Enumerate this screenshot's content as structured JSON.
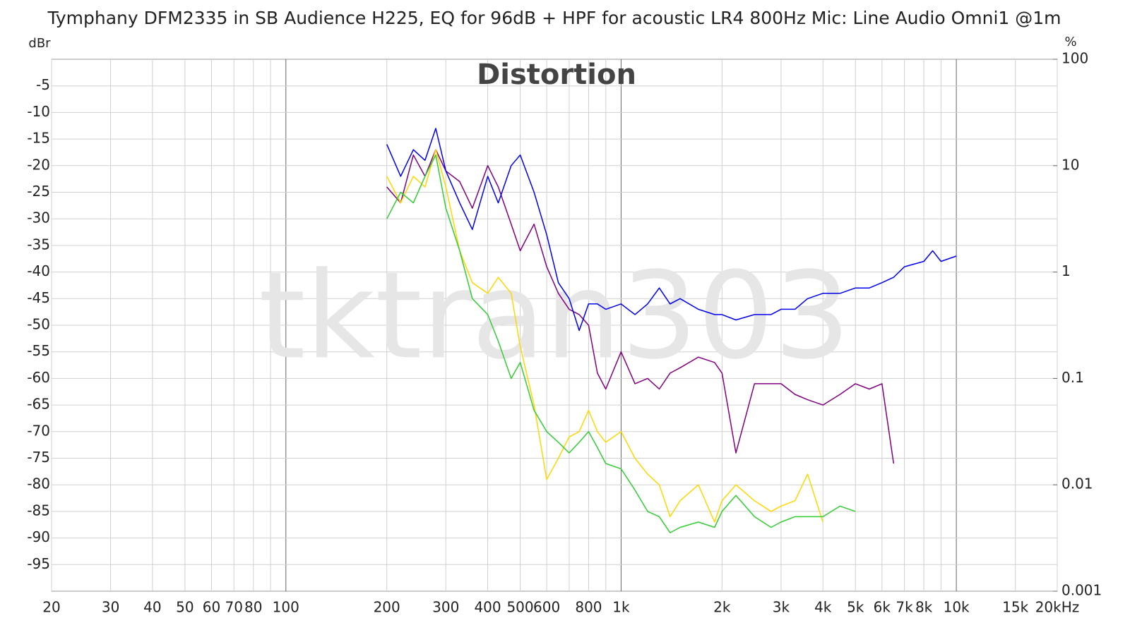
{
  "chart_data": {
    "type": "line",
    "title": "Tymphany DFM2335 in SB Audience H225, EQ for 96dB + HPF for acoustic LR4 800Hz Mic: Line Audio Omni1 @1m",
    "annotation": "Distortion",
    "watermark": "tktran303",
    "ylabel": "dBr",
    "y2label": "%",
    "xscale": "log",
    "y2scale": "log",
    "grid": true,
    "xlim": [
      20,
      20000
    ],
    "xticks": [
      20,
      30,
      40,
      50,
      60,
      70,
      80,
      100,
      200,
      300,
      400,
      500,
      600,
      800,
      {
        "value": 1000,
        "label": "1k"
      },
      {
        "value": 2000,
        "label": "2k"
      },
      {
        "value": 3000,
        "label": "3k"
      },
      {
        "value": 4000,
        "label": "4k"
      },
      {
        "value": 5000,
        "label": "5k"
      },
      {
        "value": 6000,
        "label": "6k"
      },
      {
        "value": 7000,
        "label": "7k"
      },
      {
        "value": 8000,
        "label": "8k"
      },
      {
        "value": 10000,
        "label": "10k"
      },
      {
        "value": 15000,
        "label": "15k"
      },
      {
        "value": 20000,
        "label": "20kHz"
      }
    ],
    "minor_grid": [
      90,
      700,
      900,
      9000
    ],
    "ylim": [
      -100,
      0
    ],
    "yticks": [
      -5,
      -10,
      -15,
      -20,
      -25,
      -30,
      -35,
      -40,
      -45,
      -50,
      -55,
      -60,
      -65,
      -70,
      -75,
      -80,
      -85,
      -90,
      -95
    ],
    "y2lim": [
      0.001,
      100
    ],
    "y2ticks": [
      100,
      10,
      1,
      0.1,
      0.01,
      0.001
    ],
    "x": [
      200,
      220,
      240,
      260,
      280,
      300,
      330,
      360,
      400,
      430,
      470,
      500,
      550,
      600,
      650,
      700,
      750,
      800,
      850,
      900,
      1000,
      1100,
      1200,
      1300,
      1400,
      1500,
      1700,
      1900,
      2000,
      2200,
      2500,
      2800,
      3000,
      3300,
      3600,
      4000,
      4500,
      5000,
      5500,
      6000,
      6500,
      7000,
      8000,
      8500,
      9000,
      10000
    ],
    "series": [
      {
        "color": "#800080",
        "values": [
          -24,
          -27,
          -18,
          -22,
          -17,
          -21,
          -23,
          -28,
          -20,
          -24,
          -31,
          -36,
          -31,
          -39,
          -44,
          -47,
          -48,
          -50,
          -59,
          -62,
          -55,
          -61,
          -60,
          -62,
          -59,
          -58,
          -56,
          -57,
          -59,
          -74,
          -61,
          -61,
          -61,
          -63,
          -64,
          -65,
          -63,
          -61,
          -62,
          -61,
          -76,
          null,
          null,
          null,
          null,
          null
        ]
      },
      {
        "color": "#ffd700",
        "values": [
          -22,
          -27,
          -22,
          -24,
          -17,
          -24,
          -36,
          -42,
          -44,
          -41,
          -44,
          -54,
          -65,
          -79,
          -75,
          -71,
          -70,
          -66,
          -70,
          -72,
          -70,
          -75,
          -78,
          -80,
          -86,
          -83,
          -80,
          -87,
          -83,
          -80,
          -83,
          -85,
          -84,
          -83,
          -78,
          -87,
          null,
          null,
          null,
          null,
          null,
          null,
          null,
          null,
          null,
          null
        ]
      },
      {
        "color": "#33cc33",
        "values": [
          -30,
          -25,
          -27,
          -22,
          -18,
          -28,
          -36,
          -45,
          -48,
          -53,
          -60,
          -57,
          -66,
          -70,
          -72,
          -74,
          -72,
          -70,
          -73,
          -76,
          -77,
          -81,
          -85,
          -86,
          -89,
          -88,
          -87,
          -88,
          -85,
          -82,
          -86,
          -88,
          -87,
          -86,
          -86,
          -86,
          -84,
          -85,
          null,
          null,
          null,
          null,
          null,
          null,
          null,
          null
        ]
      },
      {
        "color": "#0000ee",
        "values": [
          -16,
          -22,
          -17,
          -19,
          -13,
          -21,
          -27,
          -32,
          -22,
          -27,
          -20,
          -18,
          -25,
          -33,
          -42,
          -45,
          -51,
          -46,
          -46,
          -47,
          -46,
          -48,
          -46,
          -43,
          -46,
          -45,
          -47,
          -48,
          -48,
          -49,
          -48,
          -48,
          -47,
          -47,
          -45,
          -44,
          -44,
          -43,
          -43,
          -42,
          -41,
          -39,
          -38,
          -36,
          -38,
          -37
        ]
      }
    ]
  }
}
